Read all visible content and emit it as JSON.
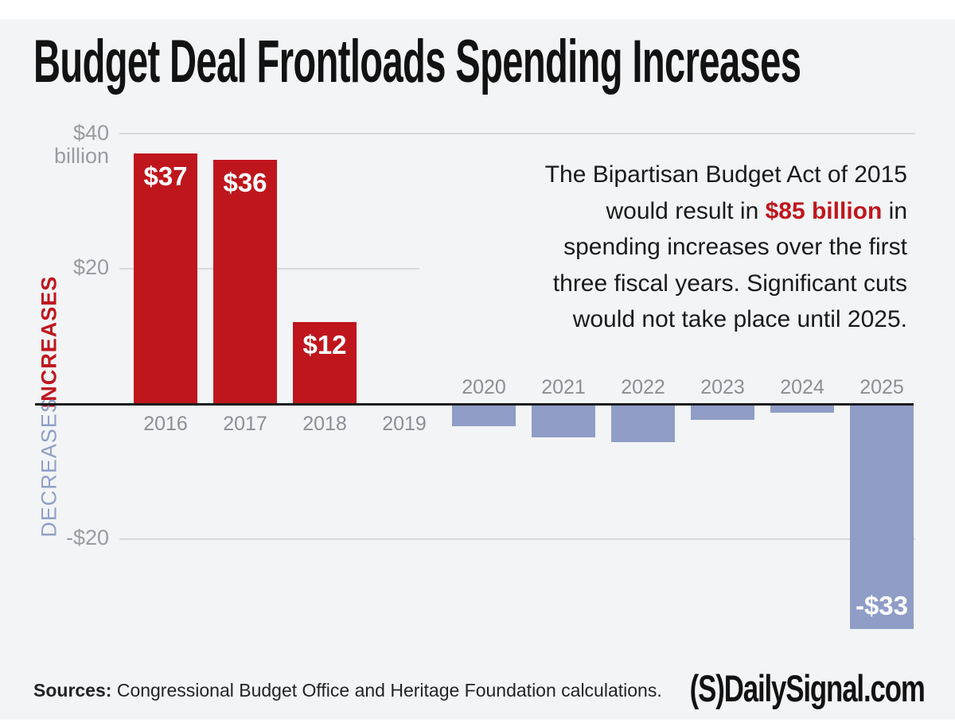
{
  "title": "Budget Deal Frontloads Spending Increases",
  "annotation": {
    "before": "The Bipartisan Budget Act of 2015 would result in ",
    "highlight": "$85 billion",
    "after": " in spending increases over the first three fiscal years. Significant cuts would not take place until 2025."
  },
  "axis": {
    "y_top_label_line1": "$40",
    "y_top_label_line2": "billion",
    "y_mid_label": "$20",
    "y_neg_label": "-$20",
    "increases_label": "INCREASES",
    "decreases_label": "DECREASES"
  },
  "chart_data": {
    "type": "bar",
    "title": "Budget Deal Frontloads Spending Increases",
    "unit": "billions of dollars",
    "categories": [
      "2016",
      "2017",
      "2018",
      "2019",
      "2020",
      "2021",
      "2022",
      "2023",
      "2024",
      "2025"
    ],
    "values": [
      37,
      36,
      12,
      0,
      -3,
      -4.7,
      -5.4,
      -2.1,
      -1.1,
      -33
    ],
    "bar_labels": {
      "2016": "$37",
      "2017": "$36",
      "2018": "$12",
      "2025": "-$33"
    },
    "gridline_values": [
      40,
      20,
      -20
    ],
    "ylim": [
      -35,
      40
    ],
    "positive_series_name": "INCREASES",
    "negative_series_name": "DECREASES",
    "legend_position": "left-rotated",
    "grid": true
  },
  "footer": {
    "sources_label": "Sources:",
    "sources_text": " Congressional Budget Office and Heritage Foundation calculations.",
    "logo_mark": "(S)",
    "logo_name": "DailySignal.com"
  },
  "colors": {
    "increase": "#bf161d",
    "decrease": "#8f9dc7",
    "grid": "#d8d9db",
    "axis_line": "#1a1b1d",
    "tick_text": "#8e8e93",
    "value_text": "#9b9ba0",
    "highlight_red": "#bf161d",
    "panel_bg": "#f3f4f6"
  }
}
